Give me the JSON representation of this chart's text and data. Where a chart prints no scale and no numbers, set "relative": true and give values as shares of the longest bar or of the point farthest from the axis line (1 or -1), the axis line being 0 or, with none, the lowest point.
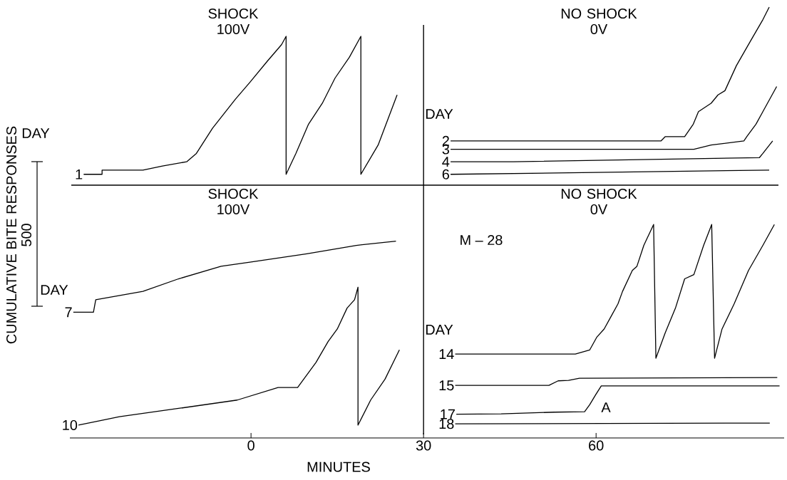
{
  "chart_data": {
    "type": "line",
    "relative": true,
    "xlim": [
      -31.5,
      92.7
    ],
    "xlabel": "MINUTES",
    "ylabel": "CUMULATIVE BITE RESPONSES",
    "xticks": [
      0,
      30,
      60
    ],
    "tick_labels": "x",
    "annotations": [
      "SHOCK 100V",
      "NO SHOCK 0V",
      "SHOCK 100V",
      "NO SHOCK 0V",
      "DAY",
      "DAY",
      "DAY",
      "DAY",
      "M – 28",
      "A",
      "500"
    ],
    "ref_lines": [
      {
        "axis": "x",
        "value": 30
      },
      {
        "axis": "y",
        "value": 0.574
      }
    ],
    "series": [
      {
        "name": "1",
        "color": "#000000",
        "x": [
          -29.1,
          -25.9,
          -25.9,
          -18.8,
          -15.4,
          -11.2,
          -9.5,
          -6.7,
          -2.7,
          -0.2,
          2.8,
          5.3,
          6.1,
          6.1,
          7.8,
          10.0,
          12.4,
          14.6,
          17.1,
          19.1,
          19.1,
          22.1,
          25.4
        ],
        "values": [
          0.6,
          0.6,
          0.61,
          0.61,
          0.62,
          0.63,
          0.65,
          0.71,
          0.78,
          0.82,
          0.87,
          0.91,
          0.93,
          0.6,
          0.65,
          0.72,
          0.77,
          0.83,
          0.88,
          0.93,
          0.6,
          0.67,
          0.79
        ]
      },
      {
        "name": "7",
        "color": "#000000",
        "x": [
          -30.9,
          -27.4,
          -27.0,
          -18.8,
          -12.6,
          -5.2,
          -0.2,
          9.7,
          18.3,
          25.2
        ],
        "values": [
          0.27,
          0.27,
          0.3,
          0.32,
          0.35,
          0.38,
          0.39,
          0.41,
          0.43,
          0.44
        ]
      },
      {
        "name": "10",
        "color": "#000000",
        "x": [
          -30.0,
          -26.5,
          -22.9,
          -12.6,
          -2.4,
          4.7,
          8.1,
          11.3,
          13.4,
          15.0,
          16.7,
          18.0,
          18.6,
          18.6,
          20.8,
          23.3,
          25.8
        ],
        "values": [
          0,
          0.01,
          0.02,
          0.04,
          0.06,
          0.09,
          0.09,
          0.15,
          0.2,
          0.23,
          0.28,
          0.3,
          0.33,
          0,
          0.06,
          0.11,
          0.18
        ]
      },
      {
        "name": "2",
        "color": "#000000",
        "x": [
          34.7,
          71.3,
          72.0,
          75.4,
          76.9,
          77.8,
          80.0,
          81.2,
          82.4,
          84.4,
          86.9,
          89.0,
          90.1
        ],
        "values": [
          0.68,
          0.68,
          0.69,
          0.69,
          0.72,
          0.75,
          0.77,
          0.79,
          0.8,
          0.86,
          0.92,
          0.97,
          1.0
        ]
      },
      {
        "name": "3",
        "color": "#000000",
        "x": [
          34.7,
          77.0,
          80.0,
          85.7,
          86.2,
          87.8,
          89.0,
          91.4
        ],
        "values": [
          0.66,
          0.66,
          0.67,
          0.68,
          0.69,
          0.72,
          0.75,
          0.81
        ]
      },
      {
        "name": "4",
        "color": "#000000",
        "x": [
          34.7,
          45.6,
          88.4,
          89.0,
          90.7
        ],
        "values": [
          0.63,
          0.63,
          0.64,
          0.65,
          0.68
        ]
      },
      {
        "name": "6",
        "color": "#000000",
        "x": [
          34.7,
          90.1
        ],
        "values": [
          0.6,
          0.61
        ]
      },
      {
        "name": "14",
        "color": "#000000",
        "x": [
          35.5,
          56.4,
          58.9,
          60.1,
          61.4,
          62.6,
          63.8,
          64.6,
          66.3,
          67.1,
          68.3,
          70.0,
          70.4,
          72.0,
          73.8,
          75.4,
          77.0,
          78.7,
          80.1,
          80.6,
          81.9,
          84.0,
          86.5,
          89.0,
          91.0
        ],
        "values": [
          0.17,
          0.17,
          0.18,
          0.21,
          0.23,
          0.26,
          0.29,
          0.32,
          0.37,
          0.38,
          0.43,
          0.48,
          0.16,
          0.22,
          0.28,
          0.35,
          0.36,
          0.43,
          0.48,
          0.16,
          0.23,
          0.29,
          0.37,
          0.43,
          0.48
        ]
      },
      {
        "name": "15",
        "color": "#000000",
        "x": [
          35.5,
          51.8,
          53.4,
          55.2,
          57.1,
          91.5
        ],
        "values": [
          0.095,
          0.095,
          0.106,
          0.107,
          0.112,
          0.114
        ]
      },
      {
        "name": "17",
        "color": "#000000",
        "x": [
          35.7,
          43.5,
          52.7,
          58.0,
          58.9,
          59.9,
          60.9,
          91.9
        ],
        "values": [
          0.026,
          0.027,
          0.031,
          0.032,
          0.049,
          0.072,
          0.094,
          0.094
        ]
      },
      {
        "name": "18",
        "color": "#000000",
        "x": [
          35.5,
          90.2
        ],
        "values": [
          0.003,
          0.005
        ]
      }
    ]
  }
}
